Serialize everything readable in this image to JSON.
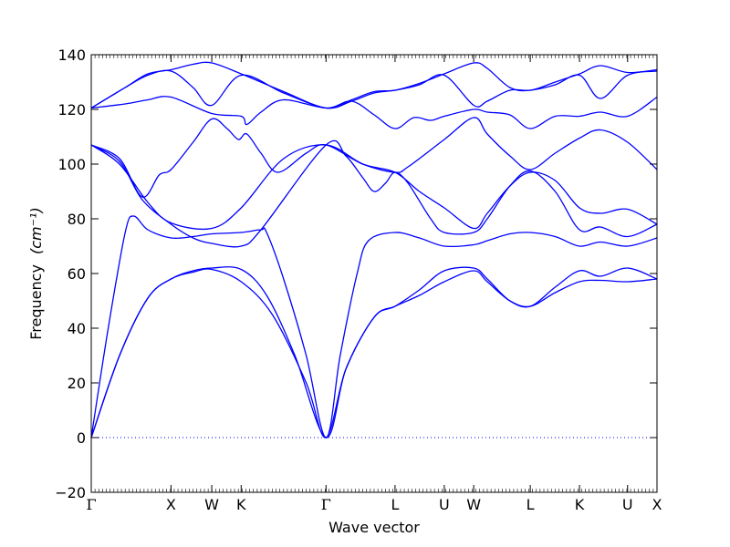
{
  "chart_data": {
    "type": "line",
    "title": "",
    "xlabel": "Wave vector",
    "ylabel": "Frequency",
    "ylabel_unit": "(cm⁻¹)",
    "ylim": [
      -20,
      140
    ],
    "yticks": [
      -20,
      0,
      20,
      40,
      60,
      80,
      100,
      120,
      140
    ],
    "xlim": [
      0,
      1
    ],
    "xticks": [
      {
        "label": "Γ",
        "x": 0.0
      },
      {
        "label": "X",
        "x": 0.141
      },
      {
        "label": "W",
        "x": 0.213
      },
      {
        "label": "K",
        "x": 0.265
      },
      {
        "label": "Γ",
        "x": 0.415
      },
      {
        "label": "L",
        "x": 0.537
      },
      {
        "label": "U",
        "x": 0.624
      },
      {
        "label": "W",
        "x": 0.676
      },
      {
        "label": "L",
        "x": 0.776
      },
      {
        "label": "K",
        "x": 0.863
      },
      {
        "label": "U",
        "x": 0.948
      },
      {
        "label": "X",
        "x": 1.0
      }
    ],
    "zero_line": {
      "y": 0,
      "style": "dotted"
    },
    "grid": false,
    "line_color": "#0000ff",
    "series": [
      {
        "points": [
          [
            0,
            0
          ],
          [
            0.05,
            30
          ],
          [
            0.1,
            51
          ],
          [
            0.141,
            58
          ],
          [
            0.18,
            60.5
          ],
          [
            0.213,
            61.5
          ],
          [
            0.265,
            57
          ],
          [
            0.32,
            45
          ],
          [
            0.38,
            20
          ],
          [
            0.415,
            0
          ],
          [
            0.45,
            25
          ],
          [
            0.5,
            44
          ],
          [
            0.537,
            48
          ],
          [
            0.58,
            52
          ],
          [
            0.624,
            57
          ],
          [
            0.676,
            61
          ],
          [
            0.7,
            57
          ],
          [
            0.74,
            50
          ],
          [
            0.776,
            48
          ],
          [
            0.82,
            53
          ],
          [
            0.863,
            57
          ],
          [
            0.9,
            57.5
          ],
          [
            0.948,
            57
          ],
          [
            1,
            58
          ]
        ]
      },
      {
        "points": [
          [
            0,
            0
          ],
          [
            0.05,
            30
          ],
          [
            0.1,
            51
          ],
          [
            0.141,
            58
          ],
          [
            0.18,
            61
          ],
          [
            0.213,
            62
          ],
          [
            0.265,
            61.5
          ],
          [
            0.31,
            52
          ],
          [
            0.36,
            30
          ],
          [
            0.415,
            0
          ],
          [
            0.45,
            25
          ],
          [
            0.5,
            44
          ],
          [
            0.537,
            48
          ],
          [
            0.58,
            54
          ],
          [
            0.624,
            61
          ],
          [
            0.676,
            62
          ],
          [
            0.7,
            58
          ],
          [
            0.74,
            50
          ],
          [
            0.776,
            48
          ],
          [
            0.82,
            55
          ],
          [
            0.863,
            61
          ],
          [
            0.9,
            59
          ],
          [
            0.948,
            62
          ],
          [
            1,
            58
          ]
        ]
      },
      {
        "points": [
          [
            0,
            0
          ],
          [
            0.03,
            40
          ],
          [
            0.06,
            75
          ],
          [
            0.075,
            81
          ],
          [
            0.1,
            76
          ],
          [
            0.141,
            73
          ],
          [
            0.18,
            73.5
          ],
          [
            0.213,
            74.5
          ],
          [
            0.265,
            75
          ],
          [
            0.3,
            76
          ],
          [
            0.31,
            75
          ],
          [
            0.34,
            58
          ],
          [
            0.38,
            30
          ],
          [
            0.415,
            0
          ],
          [
            0.44,
            30
          ],
          [
            0.47,
            60
          ],
          [
            0.49,
            72
          ],
          [
            0.537,
            75
          ],
          [
            0.58,
            73
          ],
          [
            0.624,
            70
          ],
          [
            0.676,
            70.5
          ],
          [
            0.7,
            72
          ],
          [
            0.74,
            74.5
          ],
          [
            0.776,
            75
          ],
          [
            0.82,
            73.5
          ],
          [
            0.863,
            70
          ],
          [
            0.9,
            71.5
          ],
          [
            0.948,
            70
          ],
          [
            1,
            73
          ]
        ]
      },
      {
        "points": [
          [
            0,
            107
          ],
          [
            0.05,
            101
          ],
          [
            0.09,
            87
          ],
          [
            0.141,
            78
          ],
          [
            0.18,
            73
          ],
          [
            0.213,
            71
          ],
          [
            0.265,
            70
          ],
          [
            0.3,
            76
          ],
          [
            0.415,
            107
          ],
          [
            0.45,
            103
          ],
          [
            0.48,
            95
          ],
          [
            0.5,
            90
          ],
          [
            0.52,
            93
          ],
          [
            0.537,
            97
          ],
          [
            0.56,
            93
          ],
          [
            0.6,
            80
          ],
          [
            0.624,
            75
          ],
          [
            0.676,
            75
          ],
          [
            0.7,
            80
          ],
          [
            0.74,
            92
          ],
          [
            0.776,
            97.5
          ],
          [
            0.82,
            90
          ],
          [
            0.863,
            76
          ],
          [
            0.9,
            77
          ],
          [
            0.948,
            73.5
          ],
          [
            1,
            78
          ]
        ]
      },
      {
        "points": [
          [
            0,
            107
          ],
          [
            0.05,
            100
          ],
          [
            0.1,
            86
          ],
          [
            0.141,
            78.5
          ],
          [
            0.213,
            76.5
          ],
          [
            0.265,
            84
          ],
          [
            0.34,
            102
          ],
          [
            0.415,
            107
          ],
          [
            0.48,
            100
          ],
          [
            0.537,
            97
          ],
          [
            0.58,
            90
          ],
          [
            0.624,
            84
          ],
          [
            0.676,
            76.5
          ],
          [
            0.7,
            82
          ],
          [
            0.74,
            92
          ],
          [
            0.776,
            97
          ],
          [
            0.82,
            94
          ],
          [
            0.863,
            84
          ],
          [
            0.9,
            82
          ],
          [
            0.948,
            83.5
          ],
          [
            1,
            78
          ]
        ]
      },
      {
        "points": [
          [
            0,
            107
          ],
          [
            0.05,
            102
          ],
          [
            0.09,
            88
          ],
          [
            0.12,
            96
          ],
          [
            0.141,
            98
          ],
          [
            0.18,
            108
          ],
          [
            0.213,
            116.5
          ],
          [
            0.24,
            113
          ],
          [
            0.26,
            109
          ],
          [
            0.275,
            111
          ],
          [
            0.3,
            104
          ],
          [
            0.33,
            97
          ],
          [
            0.38,
            104
          ],
          [
            0.415,
            107
          ],
          [
            0.48,
            100
          ],
          [
            0.537,
            97
          ],
          [
            0.56,
            99
          ],
          [
            0.624,
            109
          ],
          [
            0.676,
            117
          ],
          [
            0.7,
            111
          ],
          [
            0.74,
            103
          ],
          [
            0.776,
            98
          ],
          [
            0.82,
            104
          ],
          [
            0.863,
            109.5
          ],
          [
            0.9,
            112.5
          ],
          [
            0.948,
            108
          ],
          [
            1,
            98
          ]
        ]
      },
      {
        "points": [
          [
            0,
            120.5
          ],
          [
            0.06,
            122
          ],
          [
            0.1,
            123.5
          ],
          [
            0.141,
            124.5
          ],
          [
            0.213,
            118.5
          ],
          [
            0.265,
            117.5
          ],
          [
            0.275,
            114.5
          ],
          [
            0.3,
            119
          ],
          [
            0.34,
            123.5
          ],
          [
            0.415,
            120.5
          ],
          [
            0.46,
            123
          ],
          [
            0.5,
            118
          ],
          [
            0.537,
            113
          ],
          [
            0.57,
            117
          ],
          [
            0.6,
            116
          ],
          [
            0.624,
            117.5
          ],
          [
            0.676,
            120
          ],
          [
            0.7,
            119
          ],
          [
            0.74,
            118
          ],
          [
            0.776,
            113
          ],
          [
            0.82,
            117.5
          ],
          [
            0.863,
            117.5
          ],
          [
            0.9,
            119
          ],
          [
            0.948,
            117.5
          ],
          [
            1,
            124.5
          ]
        ]
      },
      {
        "points": [
          [
            0,
            120.5
          ],
          [
            0.06,
            128
          ],
          [
            0.1,
            132.5
          ],
          [
            0.141,
            134
          ],
          [
            0.18,
            128
          ],
          [
            0.213,
            121.5
          ],
          [
            0.265,
            132.5
          ],
          [
            0.34,
            126
          ],
          [
            0.415,
            120.5
          ],
          [
            0.46,
            123
          ],
          [
            0.5,
            126
          ],
          [
            0.537,
            127
          ],
          [
            0.58,
            129
          ],
          [
            0.624,
            132.5
          ],
          [
            0.676,
            121.5
          ],
          [
            0.7,
            123
          ],
          [
            0.74,
            127
          ],
          [
            0.776,
            127
          ],
          [
            0.82,
            129
          ],
          [
            0.863,
            132.5
          ],
          [
            0.9,
            124
          ],
          [
            0.948,
            132.5
          ],
          [
            1,
            134
          ]
        ]
      },
      {
        "points": [
          [
            0,
            120.5
          ],
          [
            0.06,
            128
          ],
          [
            0.1,
            133
          ],
          [
            0.141,
            134.5
          ],
          [
            0.18,
            136.5
          ],
          [
            0.213,
            137
          ],
          [
            0.265,
            133
          ],
          [
            0.34,
            126.5
          ],
          [
            0.415,
            120.5
          ],
          [
            0.46,
            123.5
          ],
          [
            0.5,
            126.5
          ],
          [
            0.537,
            127
          ],
          [
            0.58,
            129.5
          ],
          [
            0.624,
            133
          ],
          [
            0.676,
            137
          ],
          [
            0.7,
            135
          ],
          [
            0.74,
            128
          ],
          [
            0.776,
            127
          ],
          [
            0.82,
            130
          ],
          [
            0.863,
            133
          ],
          [
            0.9,
            136
          ],
          [
            0.948,
            133.5
          ],
          [
            1,
            134.5
          ]
        ]
      }
    ]
  }
}
